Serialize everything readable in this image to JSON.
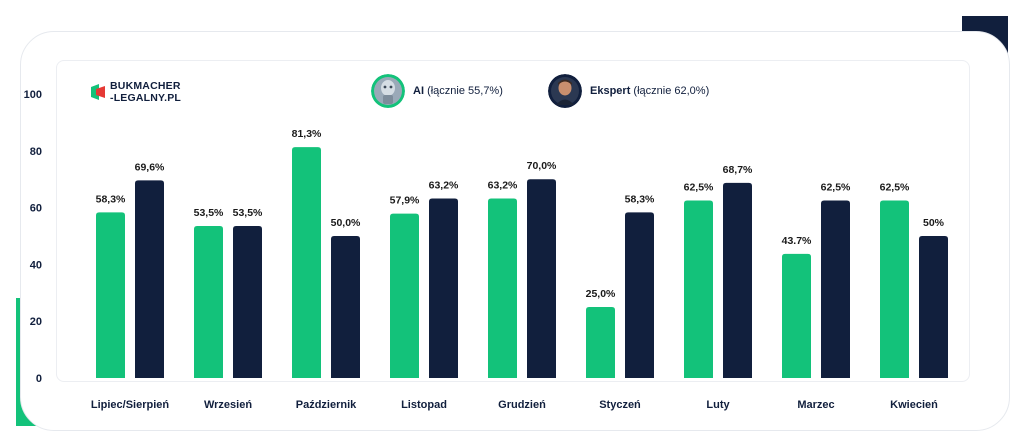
{
  "brand": {
    "line1": "BUKMACHER",
    "line2": "-LEGALNY.PL"
  },
  "legend": {
    "ai": {
      "name": "AI",
      "detail": "(łącznie 55,7%)",
      "avatar_icon": "robot-avatar-icon"
    },
    "expert": {
      "name": "Ekspert",
      "detail": "(łącznie 62,0%)",
      "avatar_icon": "expert-avatar-icon"
    }
  },
  "colors": {
    "ai": "#13c27a",
    "expert": "#111f3d",
    "corner_green": "#13c27a",
    "corner_navy": "#111f3d"
  },
  "chart_data": {
    "type": "bar",
    "categories": [
      "Lipiec/Sierpień",
      "Wrzesień",
      "Październik",
      "Listopad",
      "Grudzień",
      "Styczeń",
      "Luty",
      "Marzec",
      "Kwiecień"
    ],
    "series": [
      {
        "name": "AI (łącznie 55,7%)",
        "values": [
          58.3,
          53.5,
          81.3,
          57.9,
          63.2,
          25.0,
          62.5,
          43.7,
          62.5
        ],
        "labels": [
          "58,3%",
          "53,5%",
          "81,3%",
          "57,9%",
          "63,2%",
          "25,0%",
          "62,5%",
          "43.7%",
          "62,5%"
        ]
      },
      {
        "name": "Ekspert (łącznie 62,0%)",
        "values": [
          69.6,
          53.5,
          50.0,
          63.2,
          70.0,
          58.3,
          68.7,
          62.5,
          50.0
        ],
        "labels": [
          "69,6%",
          "53,5%",
          "50,0%",
          "63,2%",
          "70,0%",
          "58,3%",
          "68,7%",
          "62,5%",
          "50%"
        ]
      }
    ],
    "yticks": [
      "0",
      "20",
      "40",
      "60",
      "80",
      "100"
    ],
    "ytick_values": [
      0,
      20,
      40,
      60,
      80,
      100
    ],
    "ylim": [
      0,
      100
    ],
    "grid": false,
    "legend_position": "top"
  }
}
